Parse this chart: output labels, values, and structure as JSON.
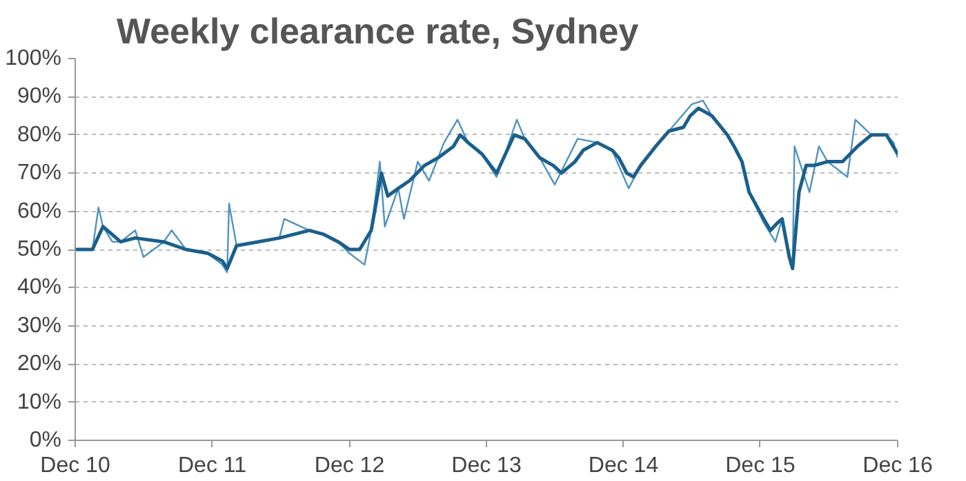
{
  "chart_data": {
    "type": "line",
    "title": "Weekly clearance rate, Sydney",
    "xlim": [
      "2010-12-01",
      "2016-12-01"
    ],
    "xticks": [
      {
        "value": "2010-12-01",
        "label": "Dec 10"
      },
      {
        "value": "2011-12-01",
        "label": "Dec 11"
      },
      {
        "value": "2012-12-01",
        "label": "Dec 12"
      },
      {
        "value": "2013-12-01",
        "label": "Dec 13"
      },
      {
        "value": "2014-12-01",
        "label": "Dec 14"
      },
      {
        "value": "2015-12-01",
        "label": "Dec 15"
      },
      {
        "value": "2016-12-01",
        "label": "Dec 16"
      }
    ],
    "ylim": [
      0,
      100
    ],
    "yticks": [
      {
        "value": 0,
        "label": "0%"
      },
      {
        "value": 10,
        "label": "10%"
      },
      {
        "value": 20,
        "label": "20%"
      },
      {
        "value": 30,
        "label": "30%"
      },
      {
        "value": 40,
        "label": "40%"
      },
      {
        "value": 50,
        "label": "50%"
      },
      {
        "value": 60,
        "label": "60%"
      },
      {
        "value": 70,
        "label": "70%"
      },
      {
        "value": 80,
        "label": "80%"
      },
      {
        "value": 90,
        "label": "90%"
      },
      {
        "value": 100,
        "label": "100%"
      }
    ],
    "grid": "y",
    "marker": "none",
    "line_style": "solid",
    "series": [
      {
        "color": "#4f93bf",
        "x": [
          "2010-12-01",
          "2011-01-16",
          "2011-02-01",
          "2011-02-13",
          "2011-03-10",
          "2011-04-01",
          "2011-05-10",
          "2011-06-01",
          "2011-07-25",
          "2011-08-15",
          "2011-09-22",
          "2011-11-19",
          "2011-12-28",
          "2012-01-10",
          "2012-01-15",
          "2012-02-04",
          "2012-04-01",
          "2012-05-28",
          "2012-06-10",
          "2012-08-16",
          "2012-09-22",
          "2012-11-01",
          "2012-12-01",
          "2013-01-10",
          "2013-01-28",
          "2013-02-20",
          "2013-03-05",
          "2013-04-10",
          "2013-04-25",
          "2013-06-01",
          "2013-07-01",
          "2013-08-10",
          "2013-09-15",
          "2013-10-13",
          "2013-11-19",
          "2013-12-28",
          "2014-01-16",
          "2014-02-20",
          "2014-03-13",
          "2014-04-22",
          "2014-06-01",
          "2014-08-01",
          "2014-09-22",
          "2014-11-01",
          "2014-12-15",
          "2015-01-16",
          "2015-02-25",
          "2015-04-01",
          "2015-06-01",
          "2015-07-01",
          "2015-07-25",
          "2015-09-04",
          "2015-10-13",
          "2015-11-01",
          "2015-12-10",
          "2016-01-10",
          "2016-01-28",
          "2016-02-25",
          "2016-03-01",
          "2016-04-10",
          "2016-05-05",
          "2016-05-28",
          "2016-07-20",
          "2016-08-10",
          "2016-09-22",
          "2016-11-01",
          "2016-11-20",
          "2016-12-01"
        ],
        "values": [
          50,
          50,
          61,
          56,
          52,
          52,
          55,
          48,
          52,
          55,
          50,
          49,
          46,
          44,
          62,
          51,
          52,
          53,
          58,
          55,
          54,
          52,
          49,
          46,
          55,
          73,
          56,
          66,
          58,
          73,
          68,
          78,
          84,
          78,
          75,
          69,
          74,
          84,
          79,
          74,
          67,
          79,
          78,
          76,
          66,
          72,
          77,
          81,
          88,
          89,
          85,
          80,
          73,
          65,
          57,
          52,
          58,
          45,
          77,
          65,
          77,
          73,
          69,
          84,
          80,
          80,
          78,
          74
        ]
      },
      {
        "color": "#1b5f8c",
        "x": [
          "2010-12-01",
          "2011-01-16",
          "2011-02-13",
          "2011-02-25",
          "2011-04-01",
          "2011-05-10",
          "2011-07-25",
          "2011-09-22",
          "2011-11-19",
          "2011-12-28",
          "2012-01-10",
          "2012-02-04",
          "2012-04-01",
          "2012-05-28",
          "2012-07-07",
          "2012-08-16",
          "2012-09-22",
          "2012-11-01",
          "2012-12-01",
          "2012-12-28",
          "2013-01-28",
          "2013-02-24",
          "2013-03-13",
          "2013-04-10",
          "2013-05-10",
          "2013-06-19",
          "2013-07-25",
          "2013-09-04",
          "2013-09-22",
          "2013-10-13",
          "2013-11-19",
          "2013-12-28",
          "2014-01-16",
          "2014-02-13",
          "2014-03-13",
          "2014-04-22",
          "2014-05-28",
          "2014-06-19",
          "2014-07-25",
          "2014-08-16",
          "2014-09-22",
          "2014-11-01",
          "2014-11-19",
          "2014-12-10",
          "2014-12-28",
          "2015-01-16",
          "2015-02-25",
          "2015-04-01",
          "2015-05-10",
          "2015-05-28",
          "2015-06-19",
          "2015-07-25",
          "2015-09-04",
          "2015-09-22",
          "2015-10-13",
          "2015-11-01",
          "2015-12-10",
          "2015-12-28",
          "2016-01-16",
          "2016-01-28",
          "2016-02-16",
          "2016-02-25",
          "2016-03-13",
          "2016-04-01",
          "2016-04-22",
          "2016-05-28",
          "2016-07-07",
          "2016-08-16",
          "2016-09-22",
          "2016-11-01",
          "2016-12-01"
        ],
        "values": [
          50,
          50,
          56,
          55,
          52,
          53,
          52,
          50,
          49,
          47,
          45,
          51,
          52,
          53,
          54,
          55,
          54,
          52,
          50,
          50,
          55,
          70,
          64,
          66,
          68,
          72,
          74,
          77,
          80,
          78,
          75,
          70,
          74,
          80,
          79,
          74,
          72,
          70,
          73,
          76,
          78,
          76,
          74,
          70,
          69,
          72,
          77,
          81,
          82,
          85,
          87,
          85,
          80,
          77,
          73,
          65,
          58,
          55,
          57,
          58,
          48,
          45,
          65,
          72,
          72,
          73,
          73,
          77,
          80,
          80,
          75
        ]
      }
    ]
  }
}
